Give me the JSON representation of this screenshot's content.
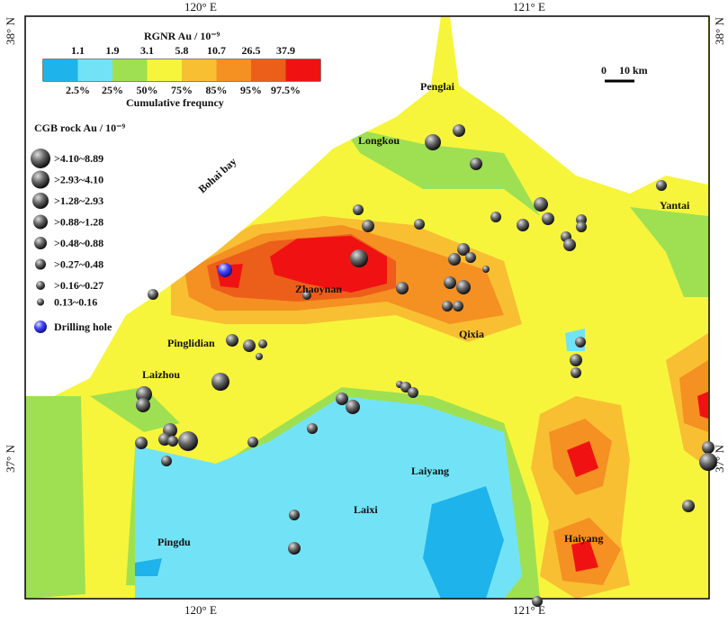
{
  "axes": {
    "top": [
      "120° E",
      "121° E"
    ],
    "bottom": [
      "120° E",
      "121° E"
    ],
    "left": [
      "38° N",
      "37° N"
    ],
    "right": [
      "38° N",
      "37° N"
    ]
  },
  "rgnr_legend": {
    "title": "RGNR Au / 10⁻⁹",
    "thresholds": [
      "1.1",
      "1.9",
      "3.1",
      "5.8",
      "10.7",
      "26.5",
      "37.9"
    ],
    "percentiles": [
      "2.5%",
      "25%",
      "50%",
      "75%",
      "85%",
      "95%",
      "97.5%"
    ],
    "caption": "Cumulative frequncy"
  },
  "scale_bar": {
    "start": "0",
    "end": "10 km"
  },
  "cgb_legend": {
    "title": "CGB rock Au / 10⁻⁹",
    "classes": [
      ">4.10~8.89",
      ">2.93~4.10",
      ">1.28~2.93",
      ">0.88~1.28",
      ">0.48~0.88",
      ">0.27~0.48",
      ">0.16~0.27",
      "0.13~0.16"
    ],
    "drilling": "Drilling hole"
  },
  "places": {
    "penglai": "Penglai",
    "longkou": "Longkou",
    "yantai": "Yantai",
    "bohai": "Bohai bay",
    "zhaoyuan": "Zhaoynan",
    "qixia": "Qixia",
    "pinglidian": "Pinglidian",
    "laizhou": "Laizhou",
    "laiyang": "Laiyang",
    "laixi": "Laixi",
    "pingdu": "Pingdu",
    "haiyang": "Haiyang"
  }
}
